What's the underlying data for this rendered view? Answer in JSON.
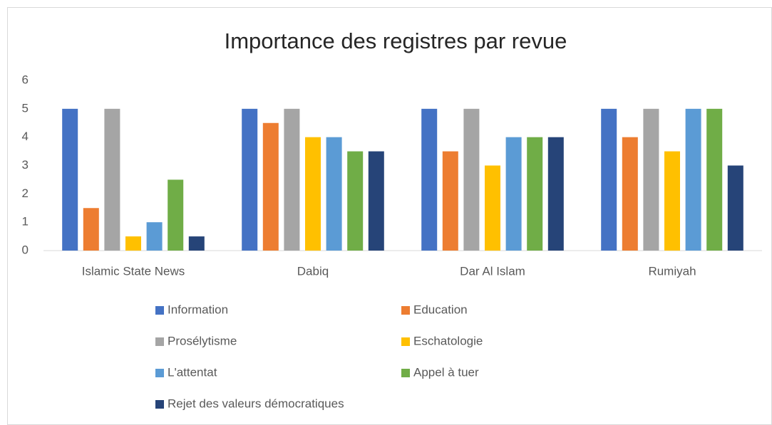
{
  "chart_data": {
    "type": "bar",
    "title": "Importance des registres par revue",
    "categories": [
      "Islamic State News",
      "Dabiq",
      "Dar Al Islam",
      "Rumiyah"
    ],
    "series": [
      {
        "name": "Information",
        "color": "#4472c4",
        "values": [
          5,
          5,
          5,
          5
        ]
      },
      {
        "name": "Education",
        "color": "#ed7d31",
        "values": [
          1.5,
          4.5,
          3.5,
          4
        ]
      },
      {
        "name": "Prosélytisme",
        "color": "#a5a5a5",
        "values": [
          5,
          5,
          5,
          5
        ]
      },
      {
        "name": "Eschatologie",
        "color": "#ffc000",
        "values": [
          0.5,
          4,
          3,
          3.5
        ]
      },
      {
        "name": "L'attentat",
        "color": "#5b9bd5",
        "values": [
          1,
          4,
          4,
          5
        ]
      },
      {
        "name": "Appel à tuer",
        "color": "#70ad47",
        "values": [
          2.5,
          3.5,
          4,
          5
        ]
      },
      {
        "name": "Rejet des valeurs démocratiques",
        "color": "#264478",
        "values": [
          0.5,
          3.5,
          4,
          3
        ]
      }
    ],
    "ylim": [
      0,
      6
    ],
    "yticks": [
      0,
      1,
      2,
      3,
      4,
      5,
      6
    ],
    "grid": false,
    "legend": "bottom"
  }
}
